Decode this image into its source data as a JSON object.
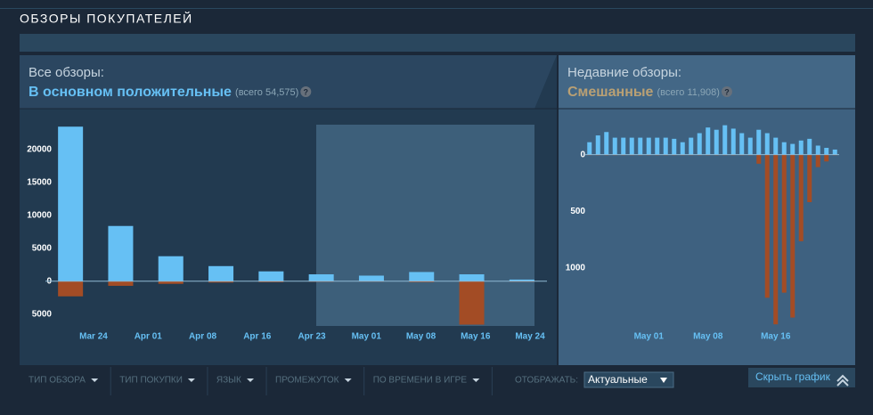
{
  "header": "ОБЗОРЫ ПОКУПАТЕЛЕЙ",
  "all_reviews": {
    "label": "Все обзоры:",
    "rating": "В основном положительные",
    "total": "(всего 54,575)",
    "help": "?"
  },
  "recent_reviews": {
    "label": "Недавние обзоры:",
    "rating": "Смешанные",
    "total": "(всего 11,908)",
    "help": "?"
  },
  "filters": [
    "ТИП ОБЗОРА",
    "ТИП ПОКУПКИ",
    "ЯЗЫК",
    "ПРОМЕЖУТОК",
    "ПО ВРЕМЕНИ В ИГРЕ"
  ],
  "display": {
    "label": "ОТОБРАЖАТЬ:",
    "value": "Актуальные"
  },
  "hide_graph": "Скрыть график",
  "chart_data": [
    {
      "type": "bar",
      "categories": [
        null,
        null,
        null,
        null,
        null,
        null,
        null,
        null,
        null,
        null
      ],
      "xlabels": [
        "Mar 24",
        "Apr 01",
        "Apr 08",
        "Apr 16",
        "Apr 23",
        "May 01",
        "May 08",
        "May 16",
        "May 24"
      ],
      "series": [
        {
          "color": "#66c0f4",
          "values": [
            23500,
            8400,
            3800,
            2300,
            1500,
            1050,
            850,
            1400,
            1050,
            250
          ]
        },
        {
          "color": "#a34c25",
          "values": [
            -2300,
            -700,
            -400,
            -200,
            -150,
            -100,
            -80,
            -150,
            -6600,
            -100
          ]
        }
      ],
      "ylim": [
        -6800,
        23800
      ],
      "yticks": [
        20000,
        15000,
        10000,
        5000,
        0,
        {
          "value": -5000,
          "label": "5000"
        }
      ]
    },
    {
      "type": "bar",
      "categories": [
        null,
        null,
        null,
        null,
        null,
        null,
        null,
        "May 01",
        null,
        null,
        null,
        null,
        null,
        null,
        "May 08",
        null,
        null,
        null,
        null,
        null,
        null,
        null,
        "May 16",
        null,
        null,
        null,
        null,
        null,
        null,
        null
      ],
      "series": [
        {
          "color": "#66c0f4",
          "values": [
            110,
            170,
            200,
            150,
            150,
            150,
            150,
            150,
            150,
            150,
            140,
            110,
            150,
            190,
            240,
            220,
            260,
            230,
            190,
            150,
            220,
            190,
            150,
            110,
            95,
            125,
            140,
            80,
            60,
            45
          ]
        },
        {
          "color": "#a34c25",
          "values": [
            -5,
            -5,
            -5,
            -5,
            -5,
            -5,
            -5,
            -5,
            -5,
            -5,
            -5,
            -5,
            -5,
            -5,
            -5,
            -5,
            -5,
            -5,
            -5,
            -5,
            -80,
            -1265,
            -1500,
            -1220,
            -1440,
            -765,
            -420,
            -110,
            -60,
            -5
          ]
        }
      ],
      "ylim": [
        -1530,
        265
      ],
      "yticks": [
        0,
        {
          "value": -500,
          "label": "500"
        },
        {
          "value": -1000,
          "label": "1000"
        }
      ]
    }
  ]
}
